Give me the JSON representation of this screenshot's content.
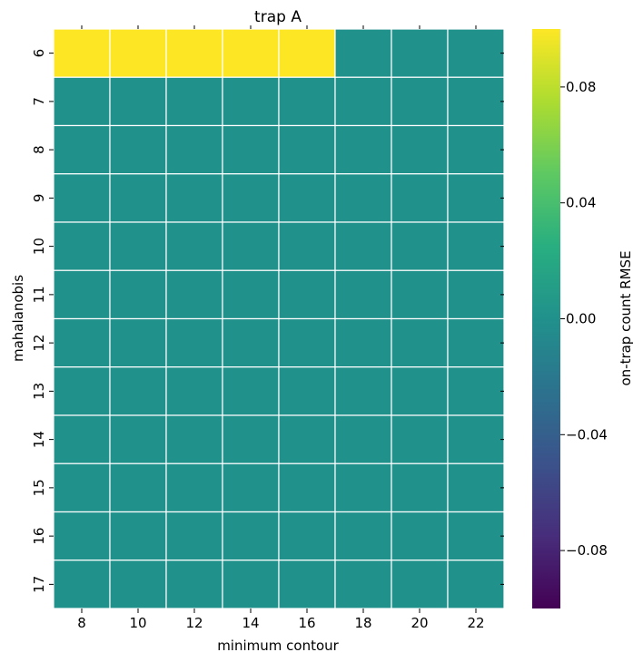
{
  "chart_data": {
    "type": "heatmap",
    "title": "trap A",
    "xlabel": "minimum contour",
    "ylabel": "mahalanobis",
    "x_categories": [
      "8",
      "10",
      "12",
      "14",
      "16",
      "18",
      "20",
      "22"
    ],
    "y_categories": [
      "6",
      "7",
      "8",
      "9",
      "10",
      "11",
      "12",
      "13",
      "14",
      "15",
      "16",
      "17"
    ],
    "values": [
      [
        0.1,
        0.1,
        0.1,
        0.1,
        0.1,
        0.0,
        0.0,
        0.0
      ],
      [
        0.0,
        0.0,
        0.0,
        0.0,
        0.0,
        0.0,
        0.0,
        0.0
      ],
      [
        0.0,
        0.0,
        0.0,
        0.0,
        0.0,
        0.0,
        0.0,
        0.0
      ],
      [
        0.0,
        0.0,
        0.0,
        0.0,
        0.0,
        0.0,
        0.0,
        0.0
      ],
      [
        0.0,
        0.0,
        0.0,
        0.0,
        0.0,
        0.0,
        0.0,
        0.0
      ],
      [
        0.0,
        0.0,
        0.0,
        0.0,
        0.0,
        0.0,
        0.0,
        0.0
      ],
      [
        0.0,
        0.0,
        0.0,
        0.0,
        0.0,
        0.0,
        0.0,
        0.0
      ],
      [
        0.0,
        0.0,
        0.0,
        0.0,
        0.0,
        0.0,
        0.0,
        0.0
      ],
      [
        0.0,
        0.0,
        0.0,
        0.0,
        0.0,
        0.0,
        0.0,
        0.0
      ],
      [
        0.0,
        0.0,
        0.0,
        0.0,
        0.0,
        0.0,
        0.0,
        0.0
      ],
      [
        0.0,
        0.0,
        0.0,
        0.0,
        0.0,
        0.0,
        0.0,
        0.0
      ],
      [
        0.0,
        0.0,
        0.0,
        0.0,
        0.0,
        0.0,
        0.0,
        0.0
      ]
    ],
    "colorbar": {
      "label": "on-trap count RMSE",
      "range": [
        -0.1,
        0.1
      ],
      "ticks": [
        0.08,
        0.04,
        0.0,
        -0.04,
        -0.08
      ],
      "tick_labels": [
        "0.08",
        "0.04",
        "0.00",
        "−0.04",
        "−0.08"
      ],
      "colormap": "viridis"
    },
    "grid": false,
    "cell_border_color": "#ffffff"
  }
}
